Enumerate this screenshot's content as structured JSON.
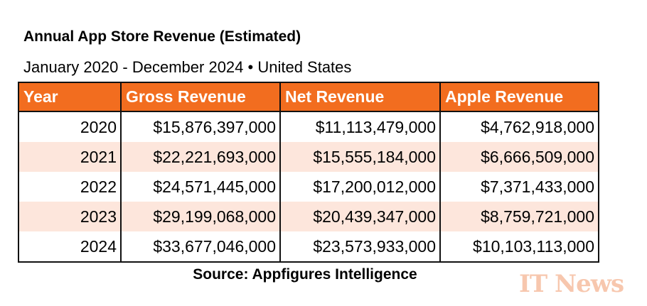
{
  "title": "Annual App Store Revenue (Estimated)",
  "subtitle": "January 2020 - December 2024 • United States",
  "table": {
    "headers": [
      "Year",
      "Gross Revenue",
      "Net Revenue",
      "Apple Revenue"
    ],
    "rows": [
      [
        "2020",
        "$15,876,397,000",
        "$11,113,479,000",
        "$4,762,918,000"
      ],
      [
        "2021",
        "$22,221,693,000",
        "$15,555,184,000",
        "$6,666,509,000"
      ],
      [
        "2022",
        "$24,571,445,000",
        "$17,200,012,000",
        "$7,371,433,000"
      ],
      [
        "2023",
        "$29,199,068,000",
        "$20,439,347,000",
        "$8,759,721,000"
      ],
      [
        "2024",
        "$33,677,046,000",
        "$23,573,933,000",
        "$10,103,113,000"
      ]
    ]
  },
  "source": "Source: Appfigures Intelligence",
  "watermark": "IT News",
  "colors": {
    "header": "#f26d1f",
    "alt_row": "#fde6dc",
    "watermark": "#f7c7ae"
  }
}
